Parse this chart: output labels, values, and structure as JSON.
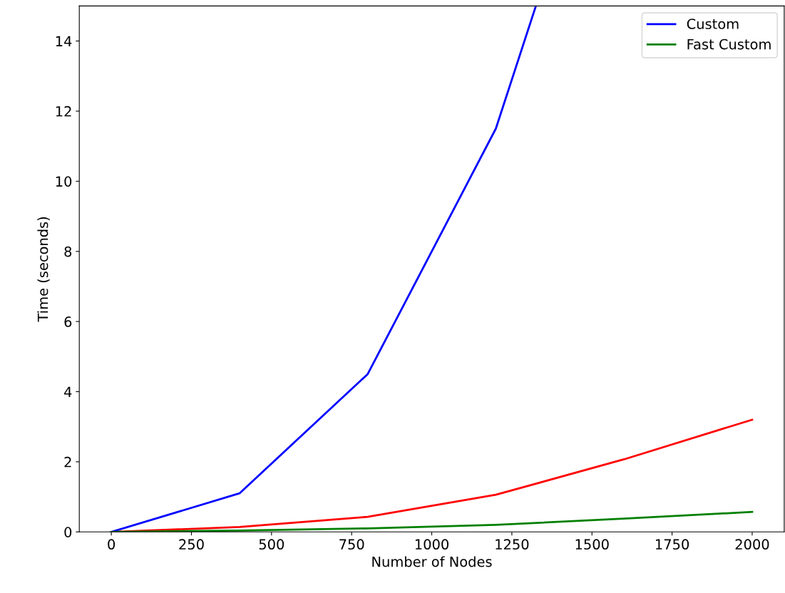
{
  "chart_data": {
    "type": "line",
    "xlabel": "Number of Nodes",
    "ylabel": "Time (seconds)",
    "x": [
      0,
      400,
      800,
      1200,
      1600,
      2000
    ],
    "series": [
      {
        "color": "#ff0000",
        "values": [
          0,
          0.14,
          0.43,
          1.06,
          2.07,
          3.2
        ]
      },
      {
        "name": "Custom",
        "color": "#0000ff",
        "x": [
          0,
          400,
          800,
          1200,
          1325
        ],
        "values": [
          0,
          1.1,
          4.5,
          11.5,
          15
        ]
      },
      {
        "name": "Fast Custom",
        "color": "#008000",
        "values": [
          0,
          0.04,
          0.1,
          0.2,
          0.38,
          0.57
        ]
      }
    ],
    "xlim": [
      -100,
      2100
    ],
    "ylim": [
      0,
      15
    ],
    "xticks": [
      0,
      250,
      500,
      750,
      1000,
      1250,
      1500,
      1750,
      2000
    ],
    "yticks": [
      0,
      2,
      4,
      6,
      8,
      10,
      12,
      14
    ],
    "grid": false,
    "legend": "top right",
    "marker": "none",
    "line_style": "solid"
  }
}
